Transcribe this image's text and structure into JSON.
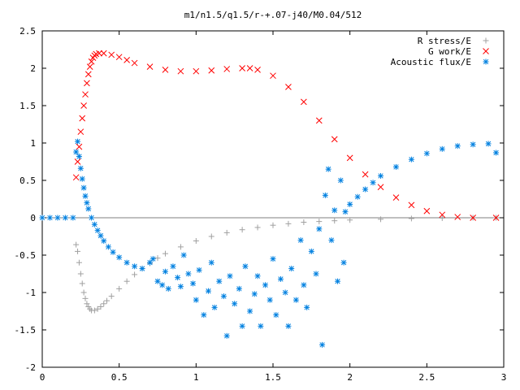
{
  "chart_data": {
    "type": "scatter",
    "title": "m1/n1.5/q1.5/r-+.07-j40/M0.04/512",
    "xlabel": "",
    "ylabel": "",
    "xlim": [
      0,
      3
    ],
    "ylim": [
      -2,
      2.5
    ],
    "x_ticks": [
      "0",
      "0.5",
      "1",
      "1.5",
      "2",
      "2.5",
      "3"
    ],
    "y_ticks": [
      "-2",
      "-1.5",
      "-1",
      "-0.5",
      "0",
      "0.5",
      "1",
      "1.5",
      "2",
      "2.5"
    ],
    "legend_position": "top-right",
    "grid": false,
    "series": [
      {
        "name": "R stress/E",
        "marker": "plus",
        "color": "#a0a0a0",
        "points": [
          [
            0.22,
            -0.36
          ],
          [
            0.23,
            -0.45
          ],
          [
            0.24,
            -0.6
          ],
          [
            0.25,
            -0.75
          ],
          [
            0.26,
            -0.88
          ],
          [
            0.27,
            -1.0
          ],
          [
            0.28,
            -1.08
          ],
          [
            0.29,
            -1.15
          ],
          [
            0.3,
            -1.19
          ],
          [
            0.31,
            -1.22
          ],
          [
            0.32,
            -1.24
          ],
          [
            0.34,
            -1.24
          ],
          [
            0.36,
            -1.22
          ],
          [
            0.38,
            -1.19
          ],
          [
            0.4,
            -1.15
          ],
          [
            0.42,
            -1.11
          ],
          [
            0.45,
            -1.05
          ],
          [
            0.5,
            -0.95
          ],
          [
            0.55,
            -0.85
          ],
          [
            0.6,
            -0.76
          ],
          [
            0.65,
            -0.68
          ],
          [
            0.7,
            -0.61
          ],
          [
            0.75,
            -0.54
          ],
          [
            0.8,
            -0.48
          ],
          [
            0.9,
            -0.39
          ],
          [
            1.0,
            -0.31
          ],
          [
            1.1,
            -0.25
          ],
          [
            1.2,
            -0.2
          ],
          [
            1.3,
            -0.16
          ],
          [
            1.4,
            -0.13
          ],
          [
            1.5,
            -0.1
          ],
          [
            1.6,
            -0.08
          ],
          [
            1.7,
            -0.06
          ],
          [
            1.8,
            -0.05
          ],
          [
            1.9,
            -0.04
          ],
          [
            2.0,
            -0.03
          ],
          [
            2.2,
            -0.02
          ],
          [
            2.4,
            -0.01
          ],
          [
            2.6,
            -0.005
          ],
          [
            2.8,
            0
          ],
          [
            2.95,
            0
          ]
        ]
      },
      {
        "name": "G work/E",
        "marker": "cross",
        "color": "#ff0000",
        "points": [
          [
            0.22,
            0.54
          ],
          [
            0.23,
            0.75
          ],
          [
            0.24,
            0.95
          ],
          [
            0.25,
            1.15
          ],
          [
            0.26,
            1.33
          ],
          [
            0.27,
            1.5
          ],
          [
            0.28,
            1.65
          ],
          [
            0.29,
            1.8
          ],
          [
            0.3,
            1.92
          ],
          [
            0.31,
            2.02
          ],
          [
            0.32,
            2.09
          ],
          [
            0.33,
            2.14
          ],
          [
            0.34,
            2.17
          ],
          [
            0.35,
            2.19
          ],
          [
            0.37,
            2.2
          ],
          [
            0.4,
            2.2
          ],
          [
            0.45,
            2.18
          ],
          [
            0.5,
            2.15
          ],
          [
            0.55,
            2.11
          ],
          [
            0.6,
            2.07
          ],
          [
            0.7,
            2.02
          ],
          [
            0.8,
            1.98
          ],
          [
            0.9,
            1.96
          ],
          [
            1.0,
            1.96
          ],
          [
            1.1,
            1.97
          ],
          [
            1.2,
            1.99
          ],
          [
            1.3,
            2.0
          ],
          [
            1.35,
            2.0
          ],
          [
            1.4,
            1.98
          ],
          [
            1.5,
            1.9
          ],
          [
            1.6,
            1.75
          ],
          [
            1.7,
            1.55
          ],
          [
            1.8,
            1.3
          ],
          [
            1.9,
            1.05
          ],
          [
            2.0,
            0.8
          ],
          [
            2.1,
            0.58
          ],
          [
            2.2,
            0.41
          ],
          [
            2.3,
            0.27
          ],
          [
            2.4,
            0.17
          ],
          [
            2.5,
            0.09
          ],
          [
            2.6,
            0.04
          ],
          [
            2.7,
            0.01
          ],
          [
            2.8,
            0
          ],
          [
            2.95,
            0
          ]
        ]
      },
      {
        "name": "Acoustic flux/E",
        "marker": "star",
        "color": "#0080e0",
        "points": [
          [
            0.0,
            0
          ],
          [
            0.05,
            0
          ],
          [
            0.1,
            0
          ],
          [
            0.15,
            0
          ],
          [
            0.2,
            0
          ],
          [
            0.22,
            0.88
          ],
          [
            0.23,
            1.02
          ],
          [
            0.24,
            0.82
          ],
          [
            0.25,
            0.66
          ],
          [
            0.26,
            0.52
          ],
          [
            0.27,
            0.4
          ],
          [
            0.28,
            0.29
          ],
          [
            0.29,
            0.2
          ],
          [
            0.3,
            0.12
          ],
          [
            0.32,
            0.0
          ],
          [
            0.34,
            -0.09
          ],
          [
            0.36,
            -0.17
          ],
          [
            0.38,
            -0.24
          ],
          [
            0.4,
            -0.31
          ],
          [
            0.43,
            -0.39
          ],
          [
            0.46,
            -0.46
          ],
          [
            0.5,
            -0.53
          ],
          [
            0.55,
            -0.6
          ],
          [
            0.6,
            -0.65
          ],
          [
            0.65,
            -0.68
          ],
          [
            0.7,
            -0.6
          ],
          [
            0.72,
            -0.55
          ],
          [
            0.75,
            -0.85
          ],
          [
            0.78,
            -0.9
          ],
          [
            0.8,
            -0.72
          ],
          [
            0.82,
            -0.95
          ],
          [
            0.85,
            -0.65
          ],
          [
            0.88,
            -0.8
          ],
          [
            0.9,
            -0.92
          ],
          [
            0.92,
            -0.5
          ],
          [
            0.95,
            -0.75
          ],
          [
            0.98,
            -0.88
          ],
          [
            1.0,
            -1.1
          ],
          [
            1.02,
            -0.7
          ],
          [
            1.05,
            -1.3
          ],
          [
            1.08,
            -0.98
          ],
          [
            1.1,
            -0.6
          ],
          [
            1.12,
            -1.2
          ],
          [
            1.15,
            -0.85
          ],
          [
            1.18,
            -1.05
          ],
          [
            1.2,
            -1.58
          ],
          [
            1.22,
            -0.78
          ],
          [
            1.25,
            -1.15
          ],
          [
            1.28,
            -0.95
          ],
          [
            1.3,
            -1.45
          ],
          [
            1.32,
            -0.65
          ],
          [
            1.35,
            -1.25
          ],
          [
            1.38,
            -1.02
          ],
          [
            1.4,
            -0.78
          ],
          [
            1.42,
            -1.45
          ],
          [
            1.45,
            -0.9
          ],
          [
            1.48,
            -1.1
          ],
          [
            1.5,
            -0.55
          ],
          [
            1.52,
            -1.3
          ],
          [
            1.55,
            -0.82
          ],
          [
            1.58,
            -1.0
          ],
          [
            1.6,
            -1.45
          ],
          [
            1.62,
            -0.68
          ],
          [
            1.65,
            -1.1
          ],
          [
            1.68,
            -0.3
          ],
          [
            1.7,
            -0.9
          ],
          [
            1.72,
            -1.2
          ],
          [
            1.75,
            -0.45
          ],
          [
            1.78,
            -0.75
          ],
          [
            1.8,
            -0.15
          ],
          [
            1.82,
            -1.7
          ],
          [
            1.84,
            0.3
          ],
          [
            1.86,
            0.65
          ],
          [
            1.88,
            -0.3
          ],
          [
            1.9,
            0.1
          ],
          [
            1.92,
            -0.85
          ],
          [
            1.94,
            0.5
          ],
          [
            1.96,
            -0.6
          ],
          [
            1.97,
            0.08
          ],
          [
            2.0,
            0.18
          ],
          [
            2.05,
            0.28
          ],
          [
            2.1,
            0.38
          ],
          [
            2.15,
            0.47
          ],
          [
            2.2,
            0.56
          ],
          [
            2.3,
            0.68
          ],
          [
            2.4,
            0.78
          ],
          [
            2.5,
            0.86
          ],
          [
            2.6,
            0.92
          ],
          [
            2.7,
            0.96
          ],
          [
            2.8,
            0.98
          ],
          [
            2.9,
            0.99
          ],
          [
            2.95,
            0.87
          ]
        ]
      }
    ]
  }
}
